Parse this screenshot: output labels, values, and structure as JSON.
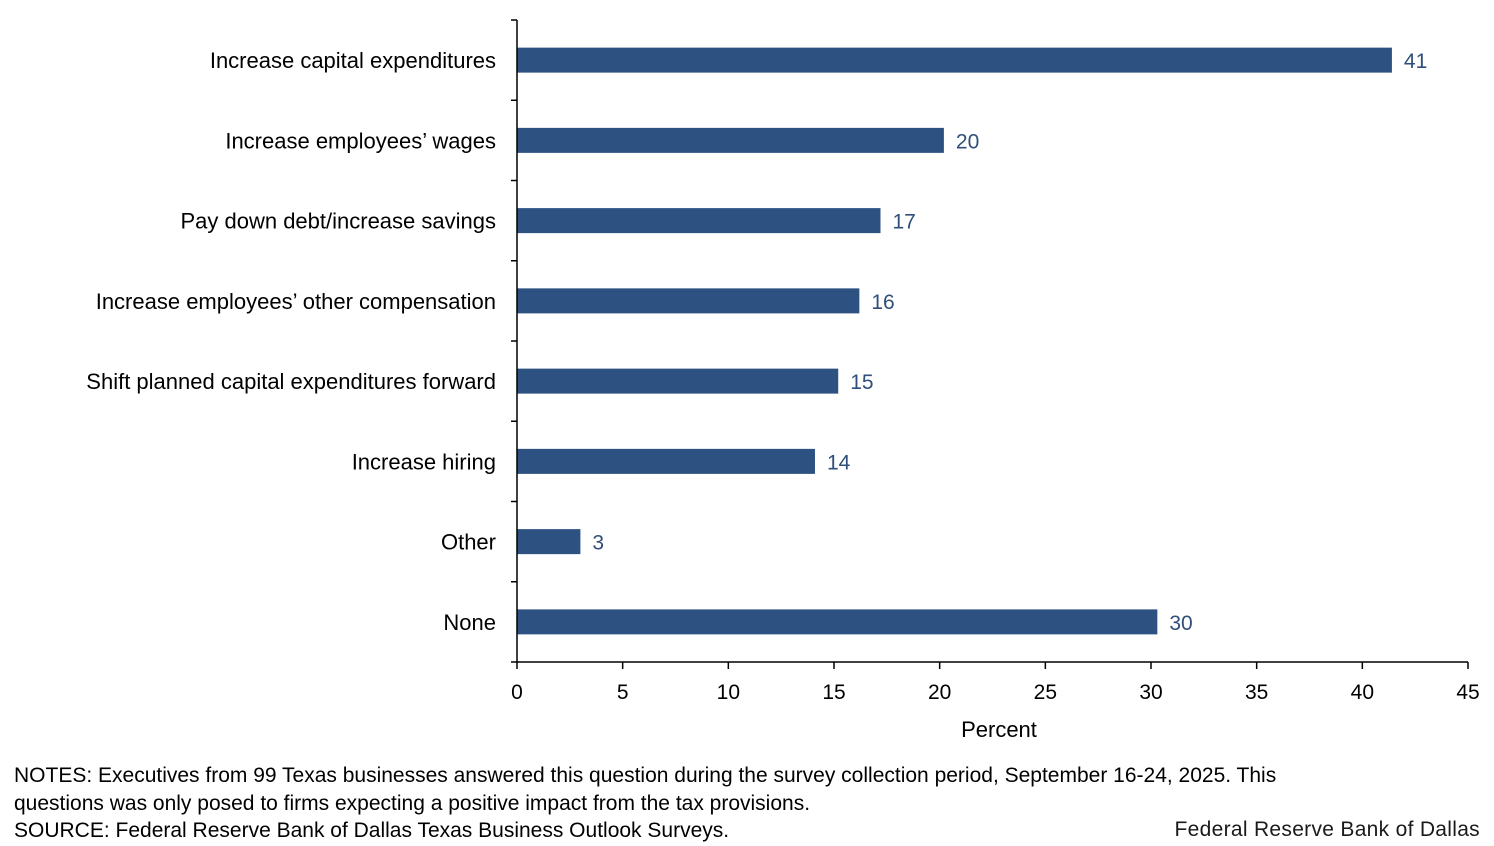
{
  "chart_data": {
    "type": "bar",
    "orientation": "horizontal",
    "categories": [
      "Increase capital expenditures",
      "Increase employees’ wages",
      "Pay down debt/increase savings",
      "Increase employees’ other compensation",
      "Shift planned capital expenditures forward",
      "Increase hiring",
      "Other",
      "None"
    ],
    "values": [
      41.4,
      20.2,
      17.2,
      16.2,
      15.2,
      14.1,
      3.0,
      30.3
    ],
    "value_labels": [
      "41",
      "20",
      "17",
      "16",
      "15",
      "14",
      "3",
      "30"
    ],
    "xlabel": "Percent",
    "xlim": [
      0,
      45
    ],
    "xticks": [
      0,
      5,
      10,
      15,
      20,
      25,
      30,
      35,
      40,
      45
    ],
    "bar_color": "#2d5282",
    "label_color": "#2f4f7a",
    "grid": false,
    "legend": "none"
  },
  "footer": {
    "notes_line1": "NOTES: Executives from 99 Texas businesses answered this question during the survey collection period, September 16-24, 2025. This",
    "notes_line2": "questions was only posed to firms expecting a positive impact from the tax provisions.",
    "source": "SOURCE: Federal Reserve Bank of Dallas Texas Business Outlook Surveys.",
    "brand": "Federal Reserve Bank of Dallas"
  }
}
